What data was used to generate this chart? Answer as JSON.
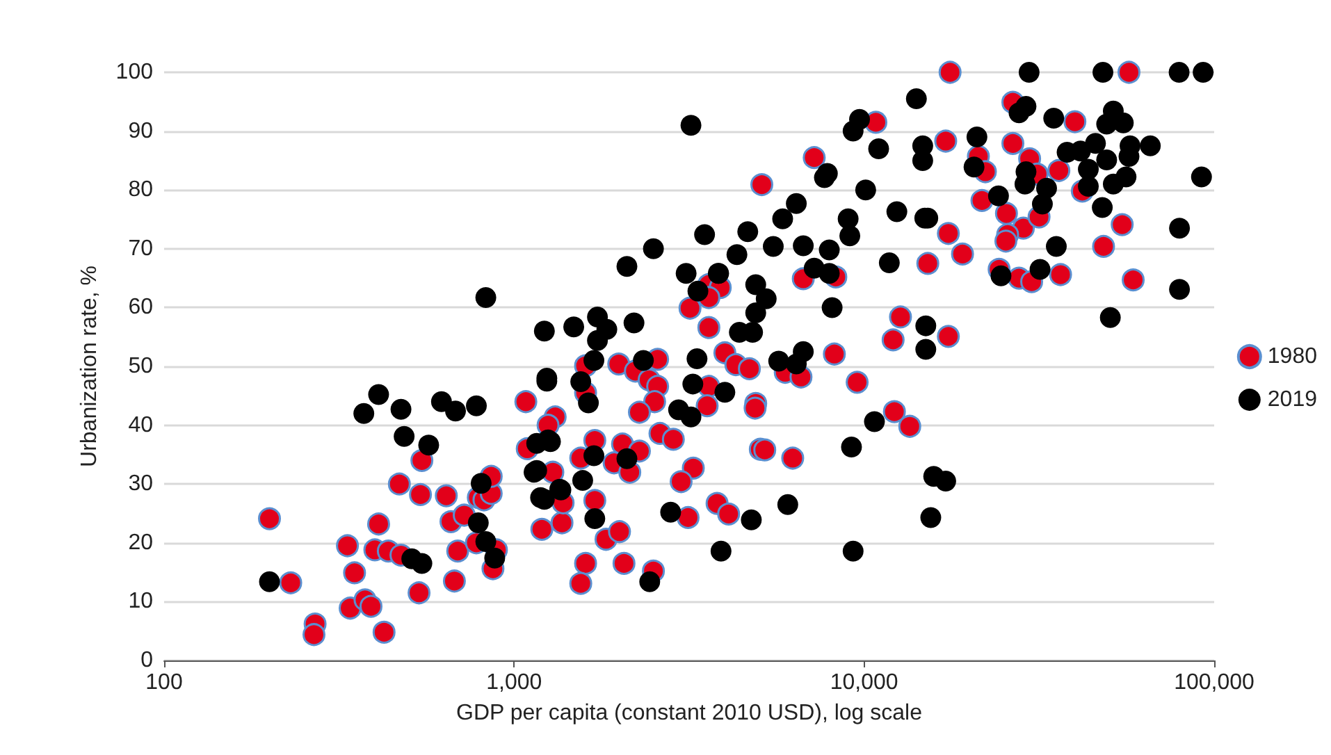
{
  "chart_data": {
    "type": "scatter",
    "xlabel": "GDP per capita (constant 2010 USD), log scale",
    "ylabel": "Urbanization rate, %",
    "log": "x",
    "xlim": [
      100,
      100000
    ],
    "xticks": [
      100,
      {
        "value": 1000,
        "label": "1,000"
      },
      {
        "value": 10000,
        "label": "10,000"
      },
      {
        "value": 100000,
        "label": "100,000"
      }
    ],
    "ylim": [
      0,
      100
    ],
    "yticks": [
      0,
      10,
      20,
      30,
      40,
      50,
      60,
      70,
      80,
      90,
      100
    ],
    "grid": "y",
    "legend": "right",
    "marker": "circle",
    "series": [
      {
        "name": "1980",
        "color": "#e2001a",
        "x": [
          200,
          230,
          270,
          268,
          334,
          350,
          340,
          375,
          390,
          410,
          400,
          437,
          475,
          425,
          470,
          540,
          545,
          535,
          640,
          660,
          720,
          690,
          675,
          780,
          870,
          890,
          790,
          820,
          860,
          860,
          1080,
          1310,
          1250,
          1090,
          1290,
          1200,
          1370,
          1380,
          3180,
          3600,
          4000,
          4300,
          4700,
          1600,
          1990,
          2220,
          2570,
          2430,
          2570,
          1600,
          1630,
          2520,
          2280,
          3600,
          3560,
          4900,
          1700,
          2040,
          2280,
          1550,
          1930,
          2140,
          2610,
          2850,
          3250,
          3000,
          1700,
          1830,
          2000,
          1600,
          2060,
          1550,
          2500,
          3800,
          4100,
          3140,
          5050,
          5100,
          17400,
          19100,
          15200,
          6700,
          8300,
          3600,
          3880,
          3600,
          12700,
          12100,
          17400,
          8220,
          5950,
          6600,
          9550,
          4880,
          12200,
          13500,
          5200,
          6250,
          26600,
          40000,
          17100,
          26600,
          21200,
          22200,
          29700,
          31200,
          36000,
          42000,
          21700,
          25500,
          28500,
          25700,
          25400,
          31600,
          54600,
          48300,
          24300,
          27700,
          30100,
          36400,
          58700,
          17600,
          57100,
          10800,
          7200
        ],
        "values": [
          24.1,
          13.2,
          6.2,
          4.4,
          19.5,
          14.9,
          8.9,
          10.3,
          9.2,
          23.2,
          18.8,
          18.6,
          17.9,
          4.8,
          30,
          28.2,
          34,
          11.5,
          28,
          23.6,
          24.7,
          18.6,
          13.5,
          20,
          15.6,
          18.8,
          27.7,
          27.3,
          28.4,
          31.3,
          44,
          41.4,
          40,
          36,
          32,
          22.3,
          23.4,
          26.8,
          59.9,
          56.6,
          52.3,
          50.3,
          49.6,
          50.1,
          50.4,
          49.2,
          51.2,
          47.7,
          46.6,
          45.5,
          null,
          44,
          42.2,
          46.6,
          43.3,
          43.7,
          37.4,
          36.8,
          35.6,
          34.4,
          33.6,
          32,
          38.6,
          37.6,
          32.7,
          30.4,
          27.2,
          20.6,
          21.9,
          16.5,
          16.5,
          13.1,
          15.2,
          26.7,
          24.9,
          24.3,
          35.9,
          80.9,
          72.6,
          69.1,
          67.5,
          64.9,
          65.2,
          63.9,
          63.4,
          61.7,
          58.4,
          54.5,
          55.1,
          52.1,
          49,
          48.2,
          47.3,
          42.9,
          42.3,
          39.8,
          35.8,
          34.4,
          94.9,
          91.6,
          88.3,
          87.9,
          85.7,
          83.1,
          85.3,
          82.7,
          83.3,
          79.8,
          78.2,
          76,
          73.5,
          72.4,
          71.3,
          75.4,
          74.1,
          70.4,
          66.5,
          65,
          64.4,
          65.6,
          64.7,
          100,
          100,
          91.5,
          85.5
        ]
      },
      {
        "name": "2019",
        "color": "#000000",
        "x": [
          200,
          372,
          410,
          475,
          485,
          570,
          620,
          680,
          780,
          1240,
          1250,
          1160,
          1190,
          1360,
          805,
          790,
          830,
          880,
          510,
          545,
          2100,
          3100,
          3830,
          3350,
          4900,
          4900,
          4400,
          4800,
          1220,
          1480,
          1730,
          1840,
          2200,
          1730,
          1690,
          1240,
          1550,
          1630,
          2340,
          3330,
          3240,
          4000,
          2950,
          3200,
          1160,
          1270,
          1140,
          1570,
          1350,
          1220,
          1690,
          2100,
          1700,
          2800,
          4760,
          3900,
          2440,
          830,
          7850,
          7700,
          10100,
          6400,
          5850,
          4650,
          3500,
          9000,
          9100,
          12400,
          15200,
          4330,
          5500,
          6700,
          7950,
          11800,
          7200,
          7950,
          3840,
          5250,
          8100,
          15000,
          15000,
          5700,
          6400,
          6700,
          10700,
          9200,
          15800,
          17100,
          6050,
          15500,
          9300,
          29000,
          27700,
          34800,
          51500,
          49300,
          55000,
          21000,
          14700,
          14700,
          38000,
          41500,
          45800,
          49300,
          57500,
          57100,
          65700,
          20600,
          29000,
          28800,
          33200,
          43700,
          43700,
          51500,
          56000,
          92000,
          24200,
          32300,
          47900,
          14900,
          79600,
          35400,
          31800,
          24600,
          79600,
          50500,
          2500,
          3200,
          14100,
          9700,
          9300,
          11000,
          29600,
          48100,
          79400,
          93000
        ],
        "values": [
          13.4,
          42,
          45.2,
          42.7,
          38.1,
          36.6,
          44,
          42.4,
          43.3,
          48,
          37.5,
          32.3,
          27.7,
          29,
          30.1,
          23.4,
          20.2,
          17.4,
          17.3,
          16.5,
          67,
          65.8,
          65.8,
          62.8,
          63.9,
          59.1,
          55.8,
          55.8,
          56,
          56.7,
          58.4,
          56.3,
          57.4,
          54.4,
          51,
          47.5,
          47.4,
          43.8,
          51,
          51.3,
          47,
          45.6,
          42.6,
          41.4,
          36.9,
          37.2,
          32,
          30.6,
          29.1,
          27.4,
          34.8,
          34.3,
          24.1,
          25.2,
          23.9,
          18.6,
          13.4,
          61.7,
          82.8,
          82.1,
          80,
          77.7,
          75.1,
          72.9,
          72.4,
          75.1,
          72.2,
          76.3,
          75.2,
          69,
          70.4,
          70.5,
          69.8,
          67.6,
          66.7,
          65.8,
          65.8,
          61.5,
          60,
          56.9,
          52.9,
          50.9,
          50.4,
          52.5,
          40.6,
          36.3,
          31.3,
          30.5,
          26.5,
          24.3,
          18.6,
          94.2,
          93.1,
          92.2,
          93.4,
          91.2,
          91.4,
          89,
          87.5,
          85,
          86.4,
          86.6,
          87.9,
          85.1,
          87.5,
          85.7,
          87.5,
          83.9,
          83.1,
          81,
          80.3,
          83.5,
          80.6,
          81,
          82.2,
          82.2,
          79,
          77.6,
          77,
          75.2,
          73.5,
          70.4,
          66.5,
          65.4,
          63.1,
          58.3,
          70,
          91,
          95.5,
          92,
          90,
          87,
          100,
          100,
          100,
          100
        ]
      }
    ]
  }
}
